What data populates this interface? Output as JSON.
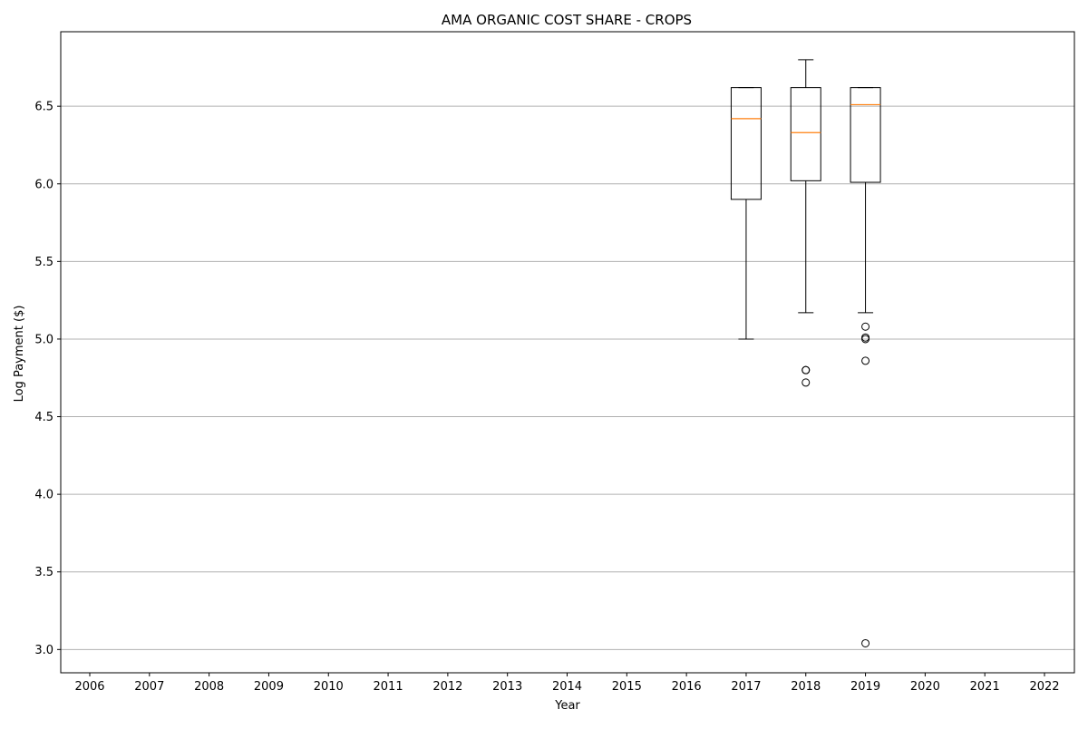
{
  "chart_data": {
    "type": "box",
    "title": "AMA ORGANIC COST SHARE - CROPS",
    "xlabel": "Year",
    "ylabel": "Log Payment ($)",
    "categories": [
      "2006",
      "2007",
      "2008",
      "2009",
      "2010",
      "2011",
      "2012",
      "2013",
      "2014",
      "2015",
      "2016",
      "2017",
      "2018",
      "2019",
      "2020",
      "2021",
      "2022"
    ],
    "yticks": [
      "3.0",
      "3.5",
      "4.0",
      "4.5",
      "5.0",
      "5.5",
      "6.0",
      "6.5"
    ],
    "ylim": [
      2.85,
      6.98
    ],
    "grid": "y",
    "boxes": [
      {
        "category": "2017",
        "whisker_low": 5.0,
        "q1": 5.9,
        "median": 6.42,
        "q3": 6.62,
        "whisker_high": 6.62,
        "outliers": []
      },
      {
        "category": "2018",
        "whisker_low": 5.17,
        "q1": 6.02,
        "median": 6.33,
        "q3": 6.62,
        "whisker_high": 6.8,
        "outliers": [
          4.8,
          4.8,
          4.72
        ]
      },
      {
        "category": "2019",
        "whisker_low": 5.17,
        "q1": 6.01,
        "median": 6.51,
        "q3": 6.62,
        "whisker_high": 6.62,
        "outliers": [
          5.08,
          5.01,
          5.0,
          4.86,
          3.04
        ]
      }
    ],
    "colors": {
      "box": "#000000",
      "median": "#ff7f0e",
      "grid": "#b0b0b0"
    }
  }
}
